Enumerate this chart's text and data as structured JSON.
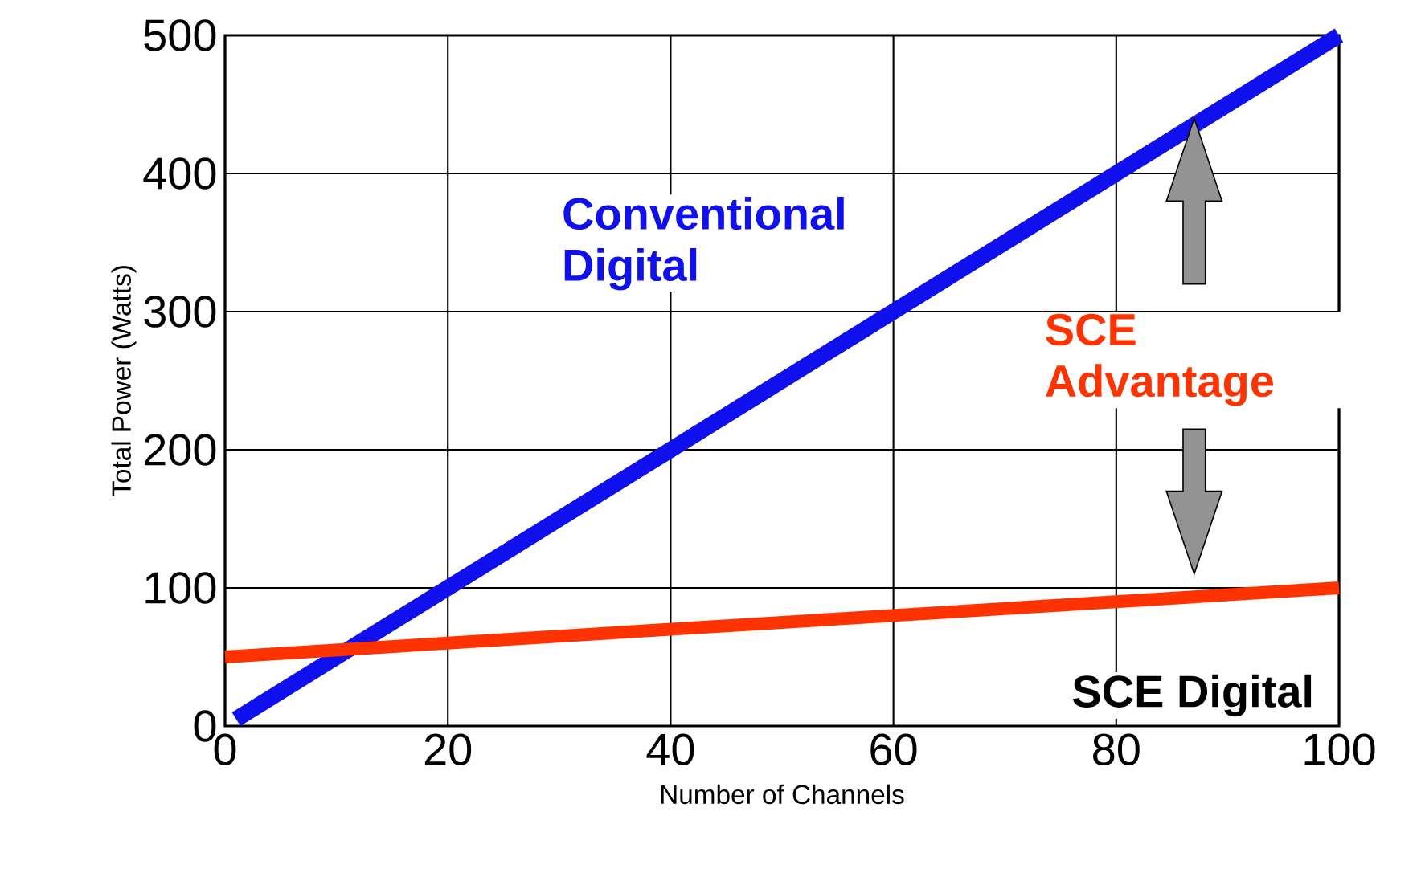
{
  "chart_data": {
    "type": "line",
    "xlabel": "Number of Channels",
    "ylabel": "Total Power (Watts)",
    "xlim": [
      0,
      100
    ],
    "ylim": [
      0,
      500
    ],
    "xticks": [
      0,
      20,
      40,
      60,
      80,
      100
    ],
    "yticks": [
      0,
      100,
      200,
      300,
      400,
      500
    ],
    "grid": true,
    "marker": "none",
    "line_style": "solid",
    "series": [
      {
        "name": "Conventional Digital",
        "color": "#1010ee",
        "x": [
          1,
          100
        ],
        "values": [
          5,
          500
        ]
      },
      {
        "name": "SCE Digital",
        "color": "#ff3300",
        "x": [
          0,
          100
        ],
        "values": [
          50,
          100
        ]
      }
    ],
    "annotations": [
      "SCE Advantage"
    ]
  }
}
